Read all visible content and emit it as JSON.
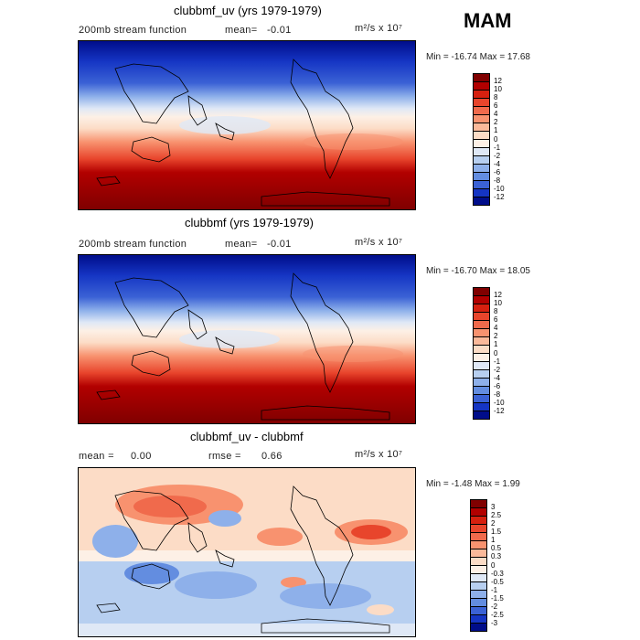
{
  "season": "MAM",
  "panels": [
    {
      "title": "clubbmf_uv (yrs 1979-1979)",
      "left_label": "200mb stream function",
      "mean_label": "mean=",
      "mean_value": "-0.01",
      "units": "m²/s x 10⁷",
      "minmax": "Min = -16.74 Max =  17.68"
    },
    {
      "title": "clubbmf (yrs 1979-1979)",
      "left_label": "200mb stream function",
      "mean_label": "mean=",
      "mean_value": "-0.01",
      "units": "m²/s x 10⁷",
      "minmax": "Min = -16.70 Max =  18.05"
    },
    {
      "title": "clubbmf_uv - clubbmf",
      "mean_label": "mean =",
      "mean_value": "0.00",
      "rmse_label": "rmse =",
      "rmse_value": "0.66",
      "units": "m²/s x 10⁷",
      "minmax": "Min = -1.48 Max =  1.99"
    }
  ],
  "colorbar_main": {
    "levels": [
      "12",
      "10",
      "8",
      "6",
      "4",
      "2",
      "1",
      "0",
      "-1",
      "-2",
      "-4",
      "-6",
      "-8",
      "-10",
      "-12"
    ],
    "colors": [
      "#800000",
      "#b20000",
      "#d6200f",
      "#e8452c",
      "#f06a4c",
      "#f8926f",
      "#fbb99a",
      "#fcdcc6",
      "#fdf0e6",
      "#dfe8f6",
      "#b7cff0",
      "#8eb0ea",
      "#638de0",
      "#3b62d5",
      "#1535c4",
      "#000d8a"
    ]
  },
  "colorbar_diff": {
    "levels": [
      "3",
      "2.5",
      "2",
      "1.5",
      "1",
      "0.5",
      "0.3",
      "0",
      "-0.3",
      "-0.5",
      "-1",
      "-1.5",
      "-2",
      "-2.5",
      "-3"
    ],
    "colors": [
      "#800000",
      "#b20000",
      "#d6200f",
      "#e8452c",
      "#f06a4c",
      "#f8926f",
      "#fbb99a",
      "#fcdcc6",
      "#fdf0e6",
      "#dfe8f6",
      "#b7cff0",
      "#8eb0ea",
      "#638de0",
      "#3b62d5",
      "#1535c4",
      "#000d8a"
    ]
  }
}
